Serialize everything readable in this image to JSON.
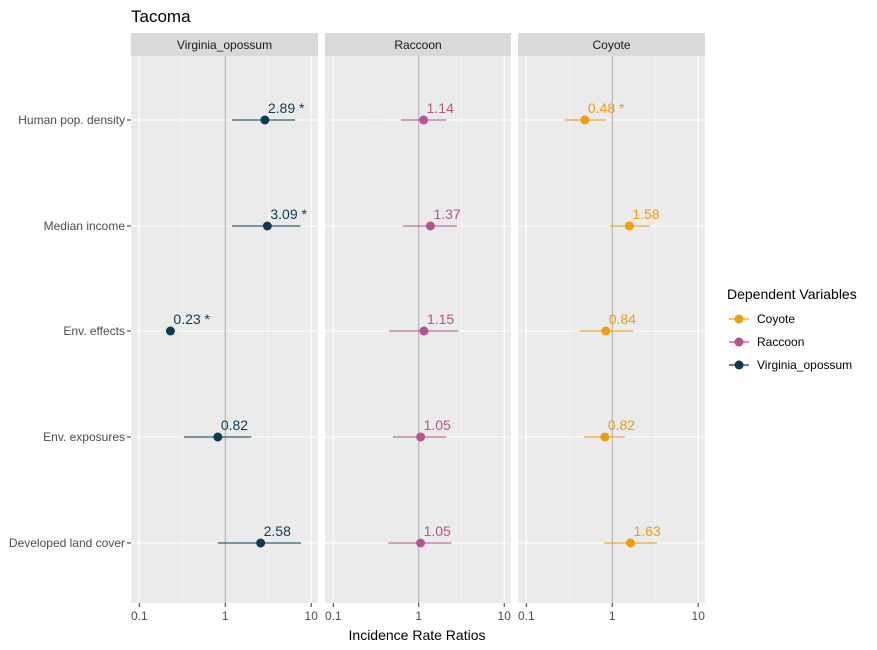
{
  "chart_data": {
    "type": "forest",
    "title": "Tacoma",
    "xlabel": "Incidence Rate Ratios",
    "ylabel": "",
    "x_scale": "log10",
    "xlim": [
      0.08,
      12
    ],
    "x_ticks": [
      0.1,
      1,
      10
    ],
    "x_tick_labels": [
      "0.1",
      "1",
      "10"
    ],
    "reference_line": 1,
    "grid": true,
    "categories": [
      "Human pop. density",
      "Median income",
      "Env. effects",
      "Env. exposures",
      "Developed land cover"
    ],
    "facets": [
      "Virginia_opossum",
      "Raccoon",
      "Coyote"
    ],
    "legend": {
      "title": "Dependent Variables",
      "position": "right",
      "entries": [
        "Coyote",
        "Raccoon",
        "Virginia_opossum"
      ]
    },
    "colors": {
      "Virginia_opossum": "#0d3b55",
      "Raccoon": "#b5548f",
      "Coyote": "#f29c08"
    },
    "series": [
      {
        "name": "Virginia_opossum",
        "values": [
          2.89,
          3.09,
          0.23,
          0.82,
          2.58
        ],
        "labels": [
          "2.89 *",
          "3.09 *",
          "0.23 *",
          "0.82",
          "2.58"
        ],
        "ci_low": [
          1.2,
          1.2,
          0.23,
          0.33,
          0.82
        ],
        "ci_high": [
          6.5,
          7.5,
          0.23,
          2.0,
          7.6
        ]
      },
      {
        "name": "Raccoon",
        "values": [
          1.14,
          1.37,
          1.15,
          1.05,
          1.05
        ],
        "labels": [
          "1.14",
          "1.37",
          "1.15",
          "1.05",
          "1.05"
        ],
        "ci_low": [
          0.62,
          0.65,
          0.45,
          0.5,
          0.44
        ],
        "ci_high": [
          2.1,
          2.8,
          2.9,
          2.1,
          2.4
        ]
      },
      {
        "name": "Coyote",
        "values": [
          0.48,
          1.58,
          0.84,
          0.82,
          1.63
        ],
        "labels": [
          "0.48 *",
          "1.58",
          "0.84",
          "0.82",
          "1.63"
        ],
        "ci_low": [
          0.28,
          0.95,
          0.42,
          0.47,
          0.8
        ],
        "ci_high": [
          0.85,
          2.75,
          1.75,
          1.4,
          3.3
        ]
      }
    ]
  }
}
